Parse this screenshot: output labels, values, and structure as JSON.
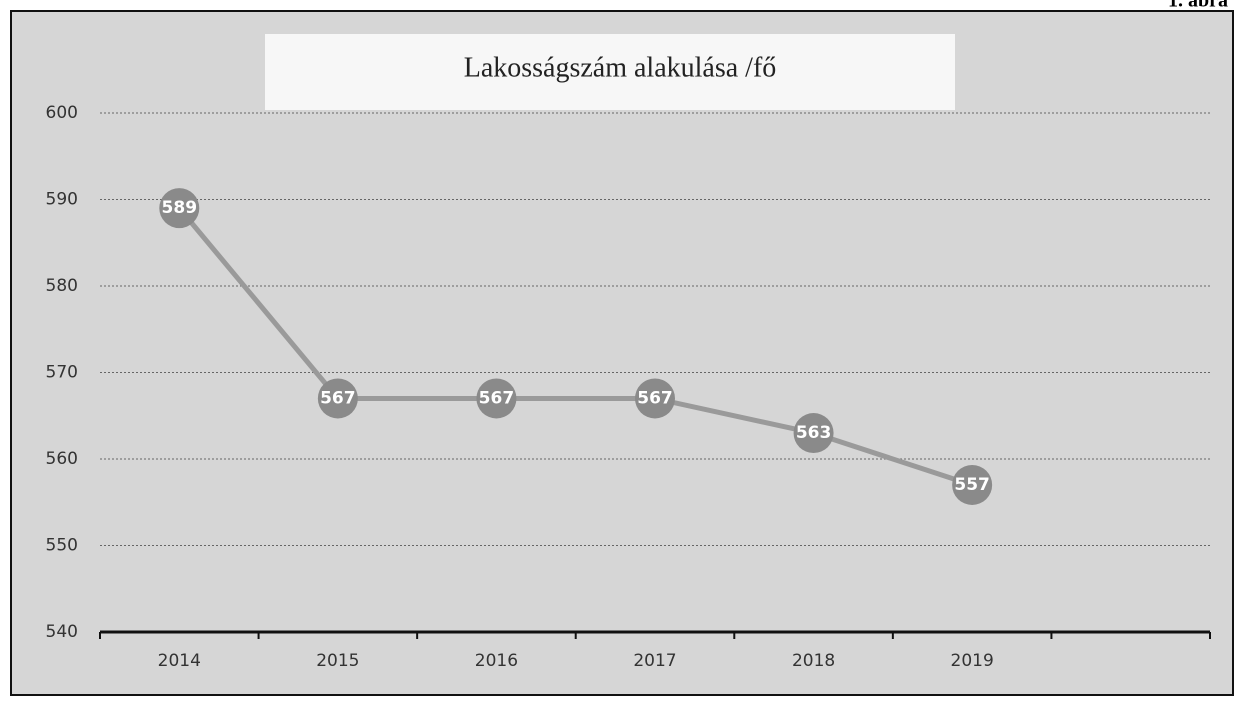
{
  "caption": "1. ábra",
  "chart_data": {
    "type": "line",
    "title": "Lakosságszám alakulása /fő",
    "categories": [
      "2014",
      "2015",
      "2016",
      "2017",
      "2018",
      "2019",
      null
    ],
    "values": [
      589,
      567,
      567,
      567,
      563,
      557,
      null
    ],
    "color": "#9a9a9a",
    "marker_color": "#8a8a8a",
    "ylim": [
      540,
      600
    ],
    "yticks": [
      540,
      550,
      560,
      570,
      580,
      590,
      600
    ],
    "grid": true
  }
}
